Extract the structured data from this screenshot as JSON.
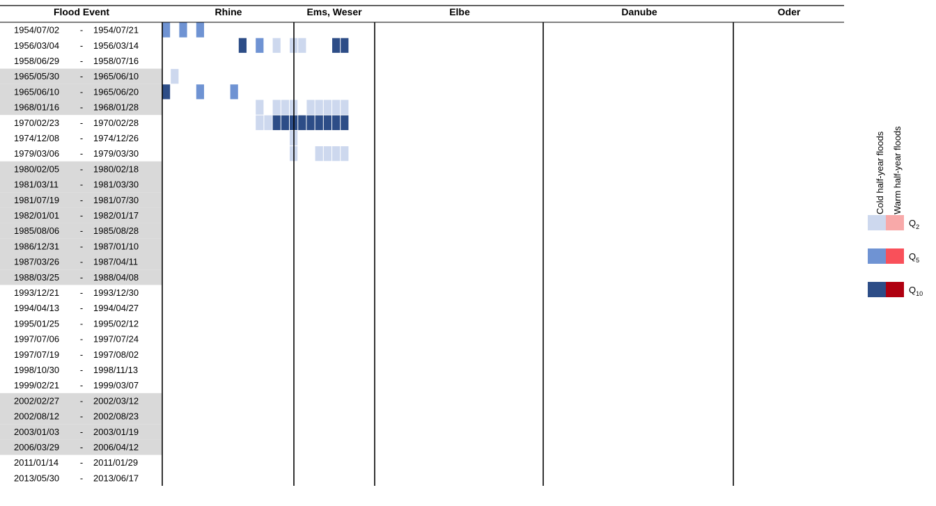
{
  "chart_data": {
    "type": "heatmap",
    "header": {
      "first_column": "Flood Event",
      "rivers": [
        "Rhine",
        "Ems, Weser",
        "Elbe",
        "Danube",
        "Oder"
      ]
    },
    "events": [
      {
        "start": "1954/07/02",
        "end": "1954/07/21",
        "highlight": false
      },
      {
        "start": "1956/03/04",
        "end": "1956/03/14",
        "highlight": false
      },
      {
        "start": "1958/06/29",
        "end": "1958/07/16",
        "highlight": false
      },
      {
        "start": "1965/05/30",
        "end": "1965/06/10",
        "highlight": true
      },
      {
        "start": "1965/06/10",
        "end": "1965/06/20",
        "highlight": true
      },
      {
        "start": "1968/01/16",
        "end": "1968/01/28",
        "highlight": true
      },
      {
        "start": "1970/02/23",
        "end": "1970/02/28",
        "highlight": false
      },
      {
        "start": "1974/12/08",
        "end": "1974/12/26",
        "highlight": false
      },
      {
        "start": "1979/03/06",
        "end": "1979/03/30",
        "highlight": false
      },
      {
        "start": "1980/02/05",
        "end": "1980/02/18",
        "highlight": true
      },
      {
        "start": "1981/03/11",
        "end": "1981/03/30",
        "highlight": true
      },
      {
        "start": "1981/07/19",
        "end": "1981/07/30",
        "highlight": true
      },
      {
        "start": "1982/01/01",
        "end": "1982/01/17",
        "highlight": true
      },
      {
        "start": "1985/08/06",
        "end": "1985/08/28",
        "highlight": true
      },
      {
        "start": "1986/12/31",
        "end": "1987/01/10",
        "highlight": true
      },
      {
        "start": "1987/03/26",
        "end": "1987/04/11",
        "highlight": true
      },
      {
        "start": "1988/03/25",
        "end": "1988/04/08",
        "highlight": true
      },
      {
        "start": "1993/12/21",
        "end": "1993/12/30",
        "highlight": false
      },
      {
        "start": "1994/04/13",
        "end": "1994/04/27",
        "highlight": false
      },
      {
        "start": "1995/01/25",
        "end": "1995/02/12",
        "highlight": false
      },
      {
        "start": "1997/07/06",
        "end": "1997/07/24",
        "highlight": false
      },
      {
        "start": "1997/07/19",
        "end": "1997/08/02",
        "highlight": false
      },
      {
        "start": "1998/10/30",
        "end": "1998/11/13",
        "highlight": false
      },
      {
        "start": "1999/02/21",
        "end": "1999/03/07",
        "highlight": false
      },
      {
        "start": "2002/02/27",
        "end": "2002/03/12",
        "highlight": true
      },
      {
        "start": "2002/08/12",
        "end": "2002/08/23",
        "highlight": true
      },
      {
        "start": "2003/01/03",
        "end": "2003/01/19",
        "highlight": true
      },
      {
        "start": "2006/03/29",
        "end": "2006/04/12",
        "highlight": true
      },
      {
        "start": "2011/01/14",
        "end": "2011/01/29",
        "highlight": false
      },
      {
        "start": "2013/05/30",
        "end": "2013/06/17",
        "highlight": false
      }
    ],
    "separator": "-",
    "rivers": [
      {
        "name": "Rhine",
        "gauges": 22,
        "cells": [
          "2020200000000000000000",
          "0000000003020101100033",
          "0000000000000000000000",
          "0100000000000000000000",
          "3000200020000000000000",
          "0000000000010111011111",
          "0000000000011333333333",
          "0000000000000001000000",
          "0000000000000001001111",
          "0000000000000000000000",
          "0000000000000000000000",
          "0000000000000000000000",
          "0000000000000000000000",
          "0000000000000000000000",
          "0000000000000000000000",
          "0000000000000000000000",
          "0000000000000000000000",
          "0000000000000000000000",
          "0000000000000000000000",
          "0000000000000000000000",
          "0000000000000000000000",
          "0000000000000000000000",
          "0000000000000000000000",
          "0000000000000000000000",
          "0000000000000000000000",
          "0000000000000000000000",
          "0000000000000000000000",
          "0000000000000000000000",
          "0000000000000000000000",
          "0000000000000000000000"
        ]
      }
    ],
    "legend": {
      "cold_label": "Cold half-year floods",
      "warm_label": "Warm half-year floods",
      "levels": [
        {
          "label": "Q",
          "sub": "2",
          "cold": "#cdd8ee",
          "warm": "#f8a9a9"
        },
        {
          "label": "Q",
          "sub": "5",
          "cold": "#6f93d3",
          "warm": "#f9505a"
        },
        {
          "label": "Q",
          "sub": "10",
          "cold": "#2d4d87",
          "warm": "#b00010"
        }
      ]
    },
    "colors": {
      "0": "#ffffff",
      "1": "#cdd8ee",
      "2": "#6f93d3",
      "3": "#2d4d87",
      "4": "#f8a9a9",
      "5": "#f9505a",
      "6": "#b00010"
    }
  }
}
